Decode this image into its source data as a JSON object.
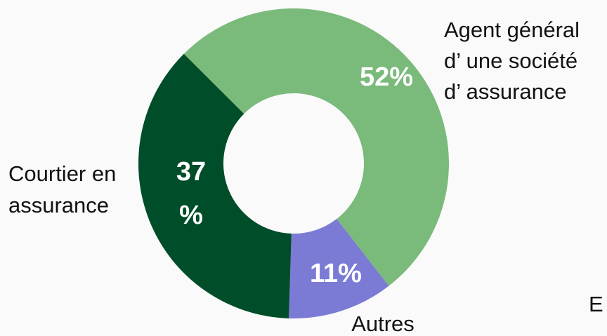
{
  "chart_data": {
    "type": "donut",
    "categories": [
      [
        "Agent général",
        "d’ une société",
        "d’ assurance"
      ],
      [
        "Autres"
      ],
      [
        "Courtier en",
        "assurance"
      ]
    ],
    "values": [
      52,
      11,
      37
    ],
    "value_labels": [
      [
        "52%"
      ],
      [
        "11%"
      ],
      [
        "37",
        "%"
      ]
    ],
    "colors": [
      "#7aba7a",
      "#7b7bd6",
      "#004d2a"
    ],
    "annotation": "E"
  }
}
